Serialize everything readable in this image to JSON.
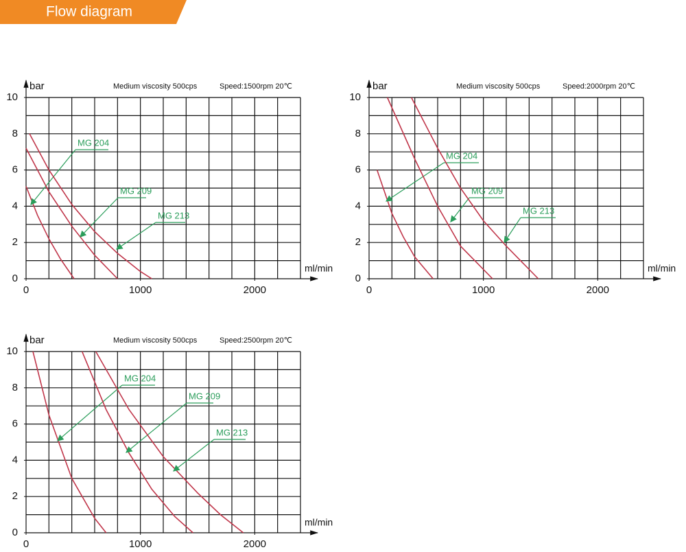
{
  "header": {
    "title": "Flow diagram"
  },
  "chart_data": [
    {
      "type": "line",
      "subtitle": "Medium viscosity 500cps",
      "speed": "Speed:1500rpm 20℃",
      "ylabel": "bar",
      "xlabel": "ml/min",
      "xlim": [
        0,
        2400
      ],
      "ylim": [
        0,
        10
      ],
      "xticks": [
        0,
        1000,
        2000
      ],
      "yticks": [
        0,
        2,
        4,
        6,
        8,
        10
      ],
      "grid": true,
      "series": [
        {
          "name": "MG 204",
          "color": "#c0364a",
          "x": [
            0,
            100,
            200,
            300,
            420
          ],
          "values": [
            5.1,
            3.5,
            2.2,
            1.1,
            0
          ]
        },
        {
          "name": "MG 209",
          "color": "#c0364a",
          "x": [
            0,
            200,
            400,
            600,
            800
          ],
          "values": [
            7.2,
            4.8,
            2.9,
            1.3,
            0
          ]
        },
        {
          "name": "MG 213",
          "color": "#c0364a",
          "x": [
            30,
            200,
            400,
            600,
            800,
            1000,
            1100
          ],
          "values": [
            8,
            6,
            4.1,
            2.6,
            1.4,
            0.4,
            0
          ]
        }
      ]
    },
    {
      "type": "line",
      "subtitle": "Medium viscosity 500cps",
      "speed": "Speed:2000rpm 20℃",
      "ylabel": "bar",
      "xlabel": "ml/min",
      "xlim": [
        0,
        2400
      ],
      "ylim": [
        0,
        10
      ],
      "xticks": [
        0,
        1000,
        2000
      ],
      "yticks": [
        0,
        2,
        4,
        6,
        8,
        10
      ],
      "grid": true,
      "series": [
        {
          "name": "MG 204",
          "color": "#c0364a",
          "x": [
            70,
            200,
            300,
            400,
            560
          ],
          "values": [
            6,
            3.6,
            2.3,
            1.2,
            0
          ]
        },
        {
          "name": "MG 209",
          "color": "#c0364a",
          "x": [
            160,
            400,
            600,
            800,
            1080
          ],
          "values": [
            10,
            6.6,
            4,
            1.8,
            0
          ]
        },
        {
          "name": "MG 213",
          "color": "#c0364a",
          "x": [
            370,
            600,
            800,
            1000,
            1200,
            1480
          ],
          "values": [
            10,
            7.2,
            5,
            3.2,
            1.8,
            0
          ]
        }
      ]
    },
    {
      "type": "line",
      "subtitle": "Medium viscosity 500cps",
      "speed": "Speed:2500rpm 20℃",
      "ylabel": "bar",
      "xlabel": "ml/min",
      "xlim": [
        0,
        2400
      ],
      "ylim": [
        0,
        10
      ],
      "xticks": [
        0,
        1000,
        2000
      ],
      "yticks": [
        0,
        2,
        4,
        6,
        8,
        10
      ],
      "grid": true,
      "series": [
        {
          "name": "MG 204",
          "color": "#c0364a",
          "x": [
            60,
            200,
            400,
            600,
            700
          ],
          "values": [
            10,
            6.5,
            3,
            0.8,
            0
          ]
        },
        {
          "name": "MG 209",
          "color": "#c0364a",
          "x": [
            490,
            700,
            900,
            1100,
            1300,
            1460
          ],
          "values": [
            10,
            6.8,
            4.4,
            2.4,
            0.9,
            0
          ]
        },
        {
          "name": "MG 213",
          "color": "#c0364a",
          "x": [
            610,
            900,
            1200,
            1500,
            1700,
            1900
          ],
          "values": [
            10,
            6.8,
            4.2,
            2.2,
            1,
            0
          ]
        }
      ]
    }
  ]
}
